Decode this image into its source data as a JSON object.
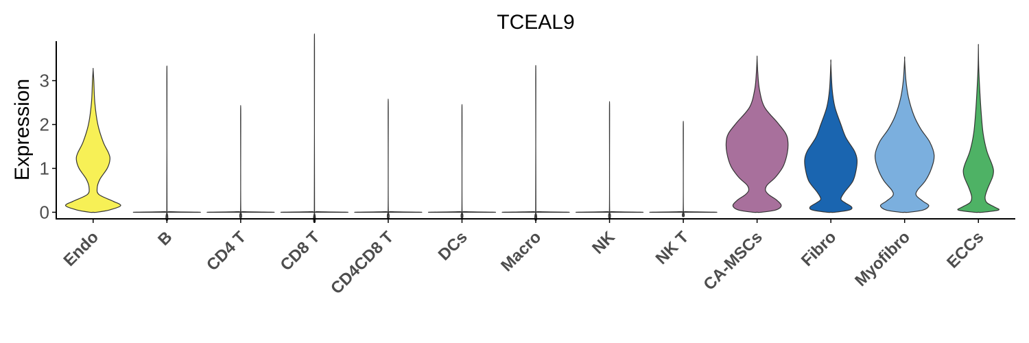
{
  "chart_data": {
    "type": "violin",
    "title": "TCEAL9",
    "ylabel": "Expression",
    "xlabel": "",
    "ylim": [
      -0.15,
      3.9
    ],
    "yticks": [
      0,
      1,
      2,
      3
    ],
    "grid": false,
    "legend": "none",
    "categories": [
      "Endo",
      "B",
      "CD4 T",
      "CD8 T",
      "CD4CD8 T",
      "DCs",
      "Macro",
      "NK",
      "NK T",
      "CA-MSCs",
      "Fibro",
      "Myofibro",
      "ECCs"
    ],
    "series": [
      {
        "category": "Endo",
        "color": "#f7f056",
        "min": 0,
        "max": 3.25,
        "profile": [
          [
            0,
            0.1
          ],
          [
            0.05,
            0.48
          ],
          [
            0.15,
            0.82
          ],
          [
            0.25,
            0.6
          ],
          [
            0.4,
            0.18
          ],
          [
            0.55,
            0.12
          ],
          [
            0.75,
            0.2
          ],
          [
            1.0,
            0.42
          ],
          [
            1.2,
            0.5
          ],
          [
            1.35,
            0.46
          ],
          [
            1.6,
            0.3
          ],
          [
            2.0,
            0.14
          ],
          [
            2.5,
            0.05
          ],
          [
            3.0,
            0.02
          ],
          [
            3.25,
            0.0
          ]
        ]
      },
      {
        "category": "B",
        "color": "#f7f7f7",
        "min": 0,
        "max": 2.97,
        "spike": true
      },
      {
        "category": "CD4 T",
        "color": "#f7f7f7",
        "min": 0,
        "max": 2.17,
        "spike": true
      },
      {
        "category": "CD8 T",
        "color": "#f7f7f7",
        "min": 0,
        "max": 3.62,
        "spike": true
      },
      {
        "category": "CD4CD8 T",
        "color": "#f7f7f7",
        "min": 0,
        "max": 2.3,
        "spike": true
      },
      {
        "category": "DCs",
        "color": "#f7f7f7",
        "min": 0,
        "max": 2.19,
        "spike": true
      },
      {
        "category": "Macro",
        "color": "#f7f7f7",
        "min": 0,
        "max": 2.98,
        "spike": true
      },
      {
        "category": "NK",
        "color": "#f7f7f7",
        "min": 0,
        "max": 2.25,
        "spike": true
      },
      {
        "category": "NK T",
        "color": "#f7f7f7",
        "min": 0,
        "max": 1.85,
        "spike": true
      },
      {
        "category": "CA-MSCs",
        "color": "#a8709c",
        "min": 0,
        "max": 3.52,
        "profile": [
          [
            0,
            0.12
          ],
          [
            0.05,
            0.55
          ],
          [
            0.15,
            0.72
          ],
          [
            0.28,
            0.58
          ],
          [
            0.4,
            0.35
          ],
          [
            0.5,
            0.25
          ],
          [
            0.62,
            0.3
          ],
          [
            0.8,
            0.55
          ],
          [
            1.05,
            0.78
          ],
          [
            1.35,
            0.9
          ],
          [
            1.6,
            0.92
          ],
          [
            1.8,
            0.85
          ],
          [
            2.05,
            0.6
          ],
          [
            2.4,
            0.22
          ],
          [
            2.8,
            0.07
          ],
          [
            3.2,
            0.02
          ],
          [
            3.52,
            0.0
          ]
        ]
      },
      {
        "category": "Fibro",
        "color": "#1a65b0",
        "min": 0,
        "max": 3.4,
        "profile": [
          [
            0,
            0.12
          ],
          [
            0.05,
            0.55
          ],
          [
            0.12,
            0.62
          ],
          [
            0.22,
            0.42
          ],
          [
            0.3,
            0.3
          ],
          [
            0.45,
            0.4
          ],
          [
            0.7,
            0.65
          ],
          [
            0.95,
            0.75
          ],
          [
            1.2,
            0.78
          ],
          [
            1.4,
            0.7
          ],
          [
            1.7,
            0.45
          ],
          [
            2.0,
            0.3
          ],
          [
            2.4,
            0.12
          ],
          [
            2.8,
            0.04
          ],
          [
            3.4,
            0.0
          ]
        ]
      },
      {
        "category": "Myofibro",
        "color": "#7bafde",
        "min": 0,
        "max": 3.48,
        "profile": [
          [
            0,
            0.12
          ],
          [
            0.05,
            0.55
          ],
          [
            0.15,
            0.72
          ],
          [
            0.25,
            0.55
          ],
          [
            0.38,
            0.35
          ],
          [
            0.5,
            0.38
          ],
          [
            0.72,
            0.62
          ],
          [
            1.0,
            0.8
          ],
          [
            1.3,
            0.88
          ],
          [
            1.6,
            0.75
          ],
          [
            1.9,
            0.48
          ],
          [
            2.2,
            0.28
          ],
          [
            2.6,
            0.12
          ],
          [
            3.0,
            0.04
          ],
          [
            3.48,
            0.0
          ]
        ]
      },
      {
        "category": "ECCs",
        "color": "#4eb265",
        "min": 0,
        "max": 3.77,
        "profile": [
          [
            0,
            0.12
          ],
          [
            0.05,
            0.6
          ],
          [
            0.12,
            0.48
          ],
          [
            0.22,
            0.25
          ],
          [
            0.35,
            0.2
          ],
          [
            0.55,
            0.28
          ],
          [
            0.8,
            0.42
          ],
          [
            0.95,
            0.45
          ],
          [
            1.1,
            0.4
          ],
          [
            1.4,
            0.25
          ],
          [
            1.8,
            0.14
          ],
          [
            2.3,
            0.08
          ],
          [
            2.8,
            0.04
          ],
          [
            3.3,
            0.01
          ],
          [
            3.77,
            0.0
          ]
        ]
      }
    ]
  }
}
